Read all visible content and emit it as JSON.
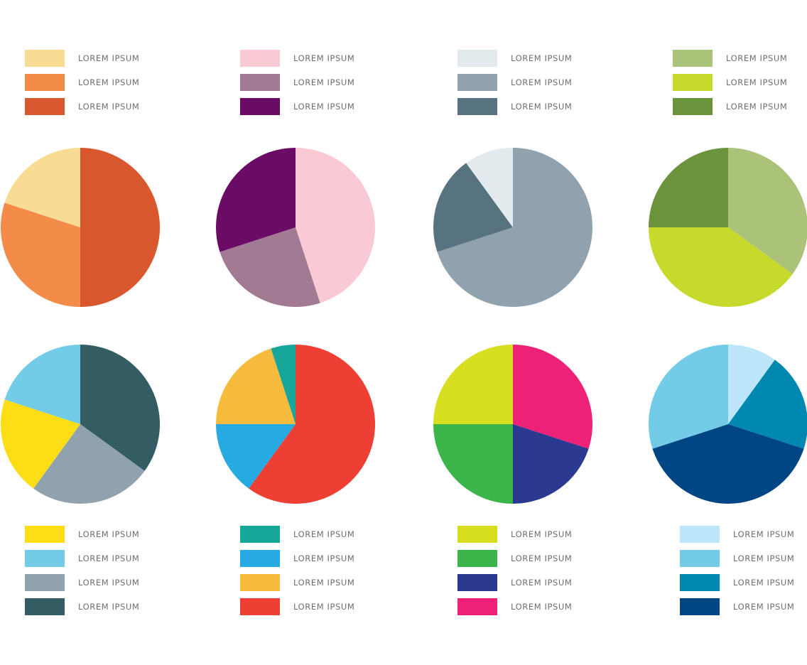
{
  "chart_data": [
    {
      "type": "pie",
      "title": "",
      "legend_position": "top",
      "labels": [
        "LOREM IPSUM",
        "LOREM IPSUM",
        "LOREM IPSUM"
      ],
      "legend_colors": [
        "#f9dc94",
        "#f28c48",
        "#d9572e"
      ],
      "slices": [
        {
          "color": "#d9572e",
          "value": 50
        },
        {
          "color": "#f28c48",
          "value": 30
        },
        {
          "color": "#f9dc94",
          "value": 20
        }
      ]
    },
    {
      "type": "pie",
      "title": "",
      "legend_position": "top",
      "labels": [
        "LOREM IPSUM",
        "LOREM IPSUM",
        "LOREM IPSUM"
      ],
      "legend_colors": [
        "#f9c9d6",
        "#a37a93",
        "#6a0b66"
      ],
      "slices": [
        {
          "color": "#f9c9d6",
          "value": 45
        },
        {
          "color": "#a37a93",
          "value": 25
        },
        {
          "color": "#6a0b66",
          "value": 30
        }
      ]
    },
    {
      "type": "pie",
      "title": "",
      "legend_position": "top",
      "labels": [
        "LOREM IPSUM",
        "LOREM IPSUM",
        "LOREM IPSUM"
      ],
      "legend_colors": [
        "#e3eaee",
        "#8fa2ad",
        "#577380"
      ],
      "slices": [
        {
          "color": "#8fa2ad",
          "value": 70
        },
        {
          "color": "#577380",
          "value": 20
        },
        {
          "color": "#e3eaee",
          "value": 10
        }
      ]
    },
    {
      "type": "pie",
      "title": "",
      "legend_position": "top",
      "labels": [
        "LOREM IPSUM",
        "LOREM IPSUM",
        "LOREM IPSUM"
      ],
      "legend_colors": [
        "#abc279",
        "#c6da2c",
        "#6a933c"
      ],
      "slices": [
        {
          "color": "#abc279",
          "value": 35
        },
        {
          "color": "#c6da2c",
          "value": 40
        },
        {
          "color": "#6a933c",
          "value": 25
        }
      ]
    },
    {
      "type": "pie",
      "title": "",
      "legend_position": "bottom",
      "labels": [
        "LOREM IPSUM",
        "LOREM IPSUM",
        "LOREM IPSUM",
        "LOREM IPSUM"
      ],
      "legend_colors": [
        "#fddd15",
        "#72cbe7",
        "#8fa2ad",
        "#345d63"
      ],
      "slices": [
        {
          "color": "#345d63",
          "value": 35
        },
        {
          "color": "#8fa2ad",
          "value": 25
        },
        {
          "color": "#fddd15",
          "value": 20
        },
        {
          "color": "#72cbe7",
          "value": 20
        }
      ]
    },
    {
      "type": "pie",
      "title": "",
      "legend_position": "bottom",
      "labels": [
        "LOREM IPSUM",
        "LOREM IPSUM",
        "LOREM IPSUM",
        "LOREM IPSUM"
      ],
      "legend_colors": [
        "#17a69a",
        "#27a9e1",
        "#f6bb3c",
        "#ee3f35"
      ],
      "slices": [
        {
          "color": "#ee3f35",
          "value": 60
        },
        {
          "color": "#27a9e1",
          "value": 15
        },
        {
          "color": "#f6bb3c",
          "value": 20
        },
        {
          "color": "#17a69a",
          "value": 5
        }
      ]
    },
    {
      "type": "pie",
      "title": "",
      "legend_position": "bottom",
      "labels": [
        "LOREM IPSUM",
        "LOREM IPSUM",
        "LOREM IPSUM",
        "LOREM IPSUM"
      ],
      "legend_colors": [
        "#d8df21",
        "#3bb54a",
        "#2b3990",
        "#ee2178"
      ],
      "slices": [
        {
          "color": "#ee2178",
          "value": 30
        },
        {
          "color": "#2b3990",
          "value": 20
        },
        {
          "color": "#3bb54a",
          "value": 25
        },
        {
          "color": "#d8df21",
          "value": 25
        }
      ]
    },
    {
      "type": "pie",
      "title": "",
      "legend_position": "bottom",
      "labels": [
        "LOREM IPSUM",
        "LOREM IPSUM",
        "LOREM IPSUM",
        "LOREM IPSUM"
      ],
      "legend_colors": [
        "#bde6fa",
        "#72cbe7",
        "#0088b0",
        "#004684"
      ],
      "slices": [
        {
          "color": "#bde6fa",
          "value": 10
        },
        {
          "color": "#0088b0",
          "value": 20
        },
        {
          "color": "#004684",
          "value": 40
        },
        {
          "color": "#72cbe7",
          "value": 30
        }
      ]
    }
  ]
}
